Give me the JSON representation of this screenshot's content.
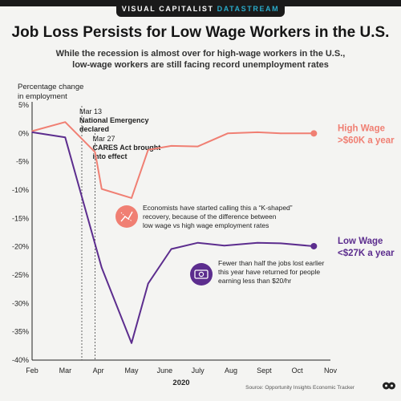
{
  "brand": {
    "name": "VISUAL CAPITALIST",
    "accent": "DATASTREAM"
  },
  "title": "Job Loss Persists for Low Wage Workers in the U.S.",
  "subtitle_lines": [
    "While the recession is almost over for high-wage workers in the U.S.,",
    "low-wage workers are still facing record unemployment rates"
  ],
  "source": "Source: Opportunity Insights Economic Tracker",
  "chart_data": {
    "type": "line",
    "ylabel_lines": [
      "Percentage change",
      "in employment"
    ],
    "xlabel": "2020",
    "ylim": [
      -40,
      5
    ],
    "y_ticks": [
      5,
      0,
      -5,
      -10,
      -15,
      -20,
      -25,
      -30,
      -35,
      -40
    ],
    "y_tick_labels": [
      "5%",
      "0%",
      "-5%",
      "-10%",
      "-15%",
      "-20%",
      "-25%",
      "-30%",
      "-35%",
      "-40%"
    ],
    "x_ticks": [
      0,
      1,
      2,
      3,
      4,
      5,
      6,
      7,
      8,
      9
    ],
    "x_tick_labels": [
      "Feb",
      "Mar",
      "Apr",
      "May",
      "June",
      "July",
      "Aug",
      "Sept",
      "Oct",
      "Nov"
    ],
    "grid": false,
    "series": [
      {
        "name": "High Wage >$60K a year",
        "label_lines": [
          "High Wage",
          ">$60K a year"
        ],
        "color": "#f07f73",
        "x": [
          0,
          1,
          1.9,
          2.1,
          3,
          3.5,
          4.2,
          5,
          5.9,
          6.8,
          7.5,
          8.5
        ],
        "y": [
          0.4,
          2.0,
          -3.3,
          -9.8,
          -11.4,
          -2.9,
          -2.2,
          -2.3,
          0.0,
          0.2,
          0.0,
          0.0
        ]
      },
      {
        "name": "Low Wage <$27K a year",
        "label_lines": [
          "Low Wage",
          "<$27K a year"
        ],
        "color": "#5c2d8e",
        "x": [
          0,
          1,
          2.1,
          3,
          3.5,
          4.2,
          5,
          5.8,
          6.8,
          7.5,
          8.5
        ],
        "y": [
          0.2,
          -0.7,
          -23.7,
          -37.0,
          -26.5,
          -20.4,
          -19.3,
          -19.8,
          -19.3,
          -19.4,
          -19.9
        ]
      }
    ],
    "events": [
      {
        "x": 1.5,
        "date": "Mar 13",
        "label_lines": [
          "National Emergency",
          "declared"
        ]
      },
      {
        "x": 1.9,
        "date": "Mar 27",
        "label_lines": [
          "CARES Act brought",
          "into effect"
        ]
      }
    ],
    "annotations": [
      {
        "icon": "k-shaped-chart-icon",
        "color": "#f07f73",
        "lines": [
          "Economists have started calling this a “K-shaped”",
          "recovery, because of the difference between",
          "low wage vs high wage employment rates"
        ]
      },
      {
        "icon": "cash-icon",
        "color": "#5c2d8e",
        "lines": [
          "Fewer than half the jobs lost earlier",
          "this year have returned for people",
          "earning less than $20/hr"
        ]
      }
    ]
  }
}
